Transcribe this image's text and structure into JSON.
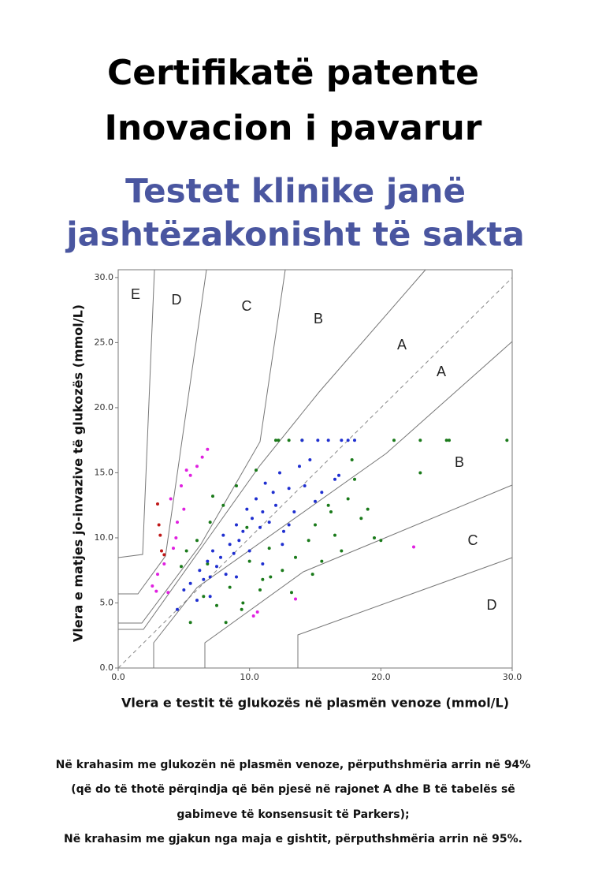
{
  "header": {
    "title": [
      "Certifikatë patente",
      "Inovacion i pavarur"
    ],
    "subtitle": [
      "Testet klinike janë",
      "jashtëzakonisht të sakta"
    ]
  },
  "chart_data": {
    "type": "scatter",
    "x_label": "Vlera e testit të glukozës në plasmën venoze (mmol/L)",
    "y_label": "Vlera e matjes jo-invazive të glukozës (mmol/L)",
    "xlim": [
      0,
      30
    ],
    "ylim": [
      0,
      30.6
    ],
    "xticks": [
      {
        "value": 0,
        "label": "0.0"
      },
      {
        "value": 10,
        "label": "10.0"
      },
      {
        "value": 20,
        "label": "20.0"
      },
      {
        "value": 30,
        "label": "30.0"
      }
    ],
    "yticks": [
      {
        "value": 0,
        "label": "0.0"
      },
      {
        "value": 5,
        "label": "5.0"
      },
      {
        "value": 10,
        "label": "10.0"
      },
      {
        "value": 15,
        "label": "15.0"
      },
      {
        "value": 20,
        "label": "20.0"
      },
      {
        "value": 25,
        "label": "25.0"
      },
      {
        "value": 30,
        "label": "30.0"
      }
    ],
    "zone_labels": [
      "E",
      "D",
      "C",
      "B",
      "A",
      "A",
      "B",
      "C",
      "D"
    ],
    "series": [
      {
        "color": "#1a7a1a",
        "x": [
          4.8,
          5.5,
          6,
          6.5,
          7,
          7.5,
          8,
          8.5,
          9,
          9.5,
          10,
          10.5,
          11,
          11.5,
          12,
          12.5,
          13,
          13.5,
          14,
          14.5,
          15,
          15.5,
          16,
          16.5,
          17,
          17.5,
          18,
          18.5,
          19,
          19.5,
          20,
          21,
          23,
          23,
          25,
          25.2,
          29.6,
          5.2,
          7.2,
          8.2,
          9.4,
          10.8,
          12.2,
          13.2,
          14.8,
          16.2,
          17.8,
          9.8,
          11.6,
          6.8
        ],
        "y": [
          7.8,
          3.5,
          9.8,
          5.5,
          11.2,
          4.8,
          12.5,
          6.2,
          14.0,
          5.0,
          8.2,
          15.2,
          6.8,
          9.2,
          17.5,
          7.5,
          17.5,
          8.5,
          17.5,
          9.8,
          11.0,
          8.2,
          12.5,
          10.2,
          9.0,
          13.0,
          14.5,
          11.5,
          12.2,
          10.0,
          9.8,
          17.5,
          17.5,
          15.0,
          17.5,
          17.5,
          17.5,
          9.0,
          13.2,
          3.5,
          4.5,
          6.0,
          17.5,
          5.8,
          7.2,
          12.0,
          16.0,
          10.8,
          7.0,
          8.0
        ]
      },
      {
        "color": "#1f2fd0",
        "x": [
          5.5,
          6,
          6.2,
          6.5,
          6.8,
          7,
          7.2,
          7.5,
          7.8,
          8,
          8.2,
          8.5,
          8.8,
          9,
          9.2,
          9.5,
          9.8,
          10,
          10.2,
          10.5,
          10.8,
          11,
          11.2,
          11.5,
          11.8,
          12,
          12.3,
          12.6,
          13,
          13.4,
          13.8,
          14.2,
          14.6,
          15,
          15.5,
          16,
          16.5,
          17,
          17.5,
          18,
          4.5,
          5,
          7,
          9,
          11,
          13,
          14,
          15.2,
          16.8,
          12.5
        ],
        "y": [
          6.5,
          5.2,
          7.5,
          6.8,
          8.2,
          7.0,
          9.0,
          7.8,
          8.5,
          10.2,
          7.2,
          9.5,
          8.8,
          11.0,
          9.8,
          10.5,
          12.2,
          9.0,
          11.5,
          13.0,
          10.8,
          12.0,
          14.2,
          11.2,
          13.5,
          12.5,
          15.0,
          10.5,
          13.8,
          12.0,
          15.5,
          14.0,
          16.0,
          12.8,
          13.5,
          17.5,
          14.5,
          17.5,
          17.5,
          17.5,
          4.5,
          6.0,
          5.5,
          7.0,
          8.0,
          11.0,
          17.5,
          17.5,
          14.8,
          9.5
        ]
      },
      {
        "color": "#e020e0",
        "x": [
          2.6,
          3,
          3.5,
          4,
          4.2,
          4.5,
          4.8,
          5,
          5.2,
          5.5,
          6,
          6.4,
          6.8,
          3.8,
          4.4,
          22.5,
          13.5,
          10.6,
          10.3,
          2.9
        ],
        "y": [
          6.3,
          7.2,
          8.0,
          13.0,
          9.2,
          11.2,
          14.0,
          12.2,
          15.2,
          14.8,
          15.5,
          16.2,
          16.8,
          5.8,
          10.0,
          9.3,
          5.3,
          4.3,
          4.0,
          5.9
        ]
      },
      {
        "color": "#c01818",
        "x": [
          3,
          3.1,
          3.2,
          3.3,
          3.5
        ],
        "y": [
          12.6,
          11.0,
          10.2,
          9.0,
          8.7
        ]
      }
    ]
  },
  "footer": [
    "Në krahasim me glukozën në plasmën venoze, përputhshmëria arrin në 94%",
    "(që do të thotë përqindja që bën pjesë në rajonet A dhe B të tabelës së",
    "gabimeve të konsensusit të Parkers);",
    "Në krahasim me gjakun nga maja e gishtit, përputhshmëria arrin në 95%."
  ]
}
